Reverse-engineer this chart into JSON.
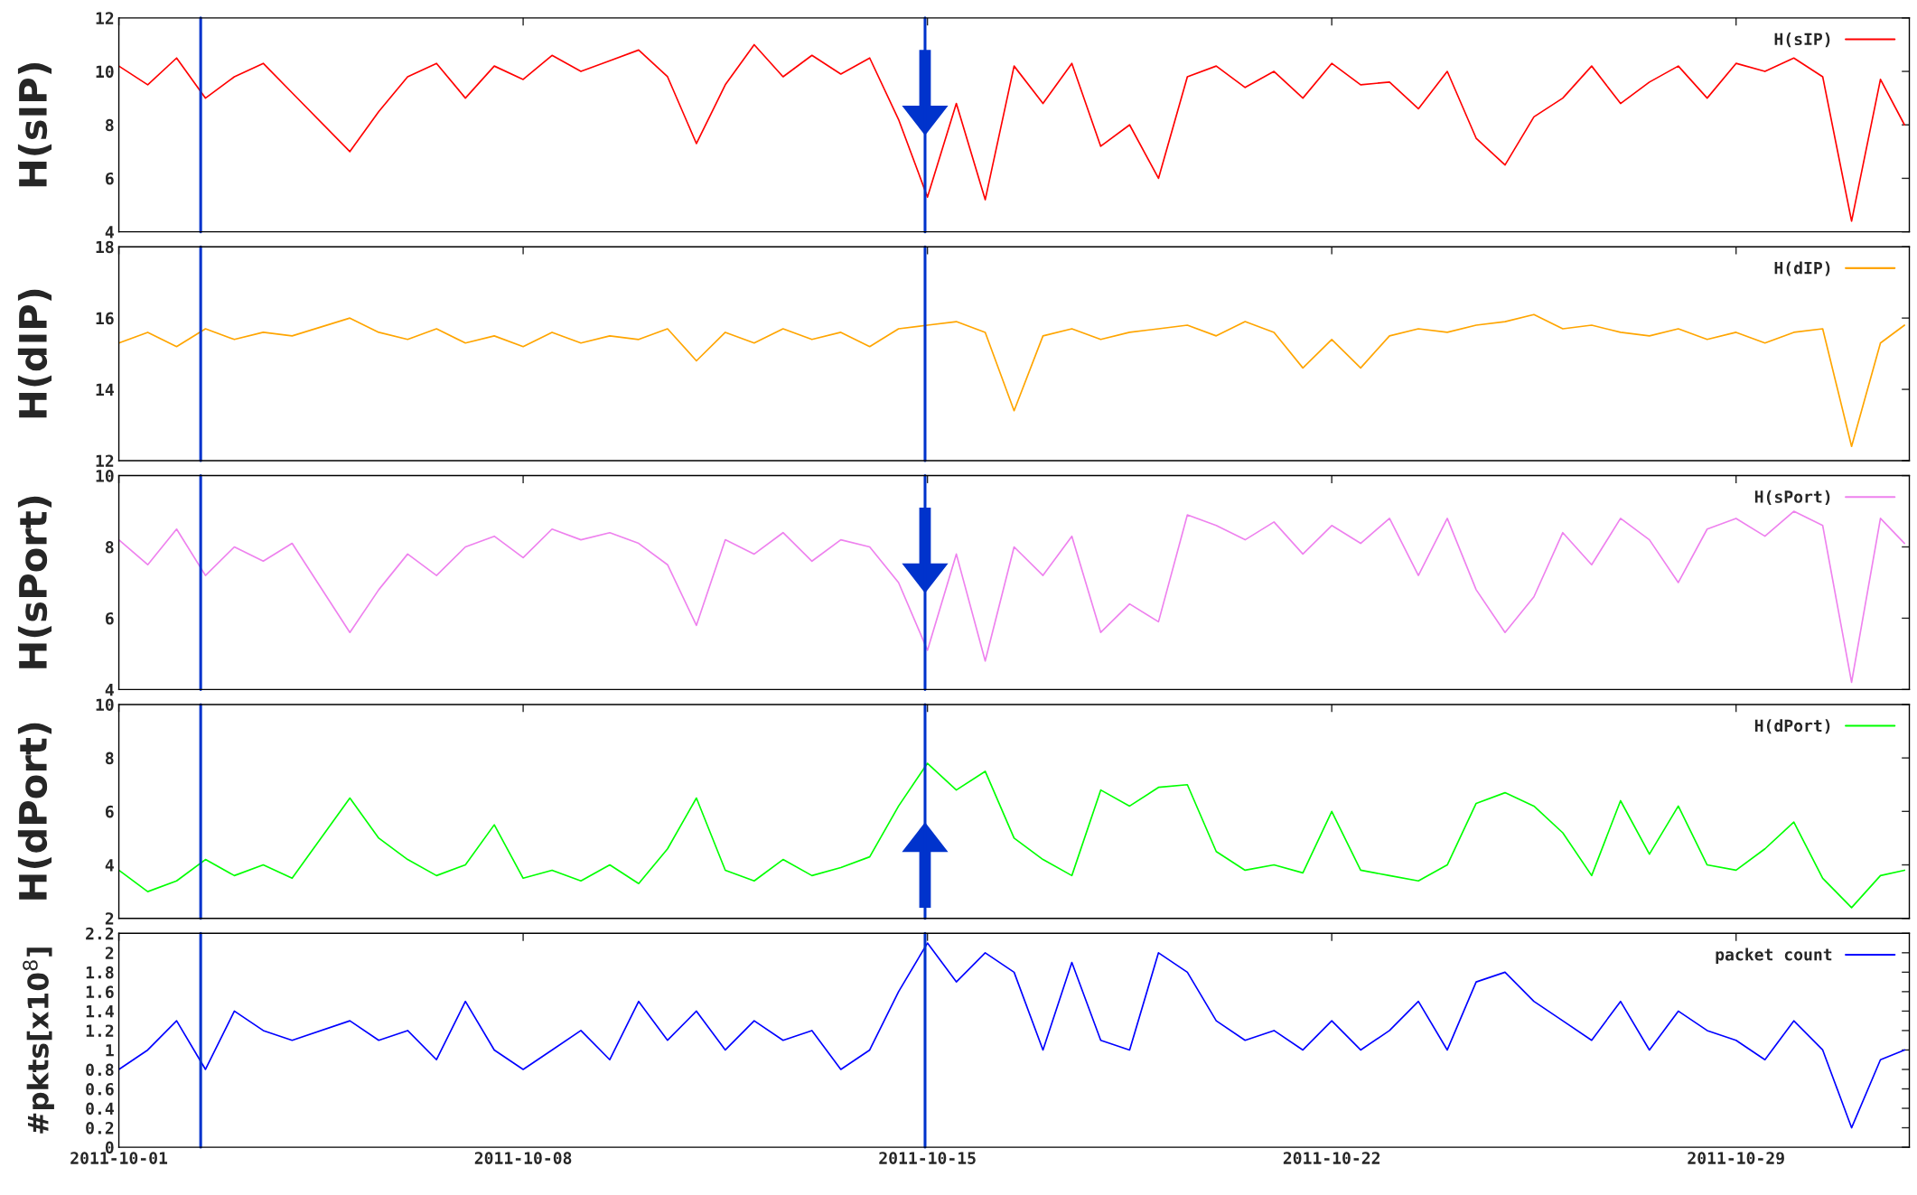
{
  "chart_data": [
    {
      "type": "line",
      "ylabel": "H(sIP)",
      "legend": "top right",
      "tick_labels": "y",
      "grid": false,
      "x": [
        "2011-10-01T00:00",
        "2011-10-01T12:00",
        "2011-10-02T00:00",
        "2011-10-02T12:00",
        "2011-10-03T00:00",
        "2011-10-03T12:00",
        "2011-10-04T00:00",
        "2011-10-04T12:00",
        "2011-10-05T00:00",
        "2011-10-05T12:00",
        "2011-10-06T00:00",
        "2011-10-06T12:00",
        "2011-10-07T00:00",
        "2011-10-07T12:00",
        "2011-10-08T00:00",
        "2011-10-08T12:00",
        "2011-10-09T00:00",
        "2011-10-09T12:00",
        "2011-10-10T00:00",
        "2011-10-10T12:00",
        "2011-10-11T00:00",
        "2011-10-11T12:00",
        "2011-10-12T00:00",
        "2011-10-12T12:00",
        "2011-10-13T00:00",
        "2011-10-13T12:00",
        "2011-10-14T00:00",
        "2011-10-14T12:00",
        "2011-10-15T00:00",
        "2011-10-15T12:00",
        "2011-10-16T00:00",
        "2011-10-16T12:00",
        "2011-10-17T00:00",
        "2011-10-17T12:00",
        "2011-10-18T00:00",
        "2011-10-18T12:00",
        "2011-10-19T00:00",
        "2011-10-19T12:00",
        "2011-10-20T00:00",
        "2011-10-20T12:00",
        "2011-10-21T00:00",
        "2011-10-21T12:00",
        "2011-10-22T00:00",
        "2011-10-22T12:00",
        "2011-10-23T00:00",
        "2011-10-23T12:00",
        "2011-10-24T00:00",
        "2011-10-24T12:00",
        "2011-10-25T00:00",
        "2011-10-25T12:00",
        "2011-10-26T00:00",
        "2011-10-26T12:00",
        "2011-10-27T00:00",
        "2011-10-27T12:00",
        "2011-10-28T00:00",
        "2011-10-28T12:00",
        "2011-10-29T00:00",
        "2011-10-29T12:00",
        "2011-10-30T00:00",
        "2011-10-30T12:00",
        "2011-10-31T00:00",
        "2011-10-31T12:00",
        "2011-10-31T22:00"
      ],
      "series": [
        {
          "name": "H(sIP)",
          "color": "#ff0000",
          "values": [
            10.2,
            9.5,
            10.5,
            9.0,
            9.8,
            10.3,
            9.2,
            null,
            7.0,
            8.5,
            9.8,
            10.3,
            9.0,
            10.2,
            9.7,
            10.6,
            10.0,
            10.4,
            10.8,
            9.8,
            7.3,
            9.5,
            11.0,
            9.8,
            10.6,
            9.9,
            10.5,
            8.2,
            5.3,
            8.8,
            5.2,
            10.2,
            8.8,
            10.3,
            7.2,
            8.0,
            6.0,
            9.8,
            10.2,
            9.4,
            10.0,
            9.0,
            10.3,
            9.5,
            9.6,
            8.6,
            10.0,
            7.5,
            6.5,
            8.3,
            9.0,
            10.2,
            8.8,
            9.6,
            10.2,
            9.0,
            10.3,
            10.0,
            10.5,
            9.8,
            4.4,
            9.7,
            8.0
          ]
        }
      ],
      "xlim": [
        "2011-10-01",
        "2011-11-01"
      ],
      "xticks": [
        "2011-10-01",
        "2011-10-08",
        "2011-10-15",
        "2011-10-22",
        "2011-10-29"
      ],
      "ylim": [
        4,
        12
      ],
      "yticks": [
        4,
        6,
        8,
        10,
        12
      ],
      "ref_lines": [
        {
          "axis": "x",
          "value": "2011-10-02T10:00",
          "color": "#0033cc"
        },
        {
          "axis": "x",
          "value": "2011-10-14T23:00",
          "color": "#0033cc"
        }
      ]
    },
    {
      "type": "line",
      "ylabel": "H(dIP)",
      "legend": "top right",
      "tick_labels": "y",
      "grid": false,
      "x": [
        "2011-10-01T00:00",
        "2011-10-01T12:00",
        "2011-10-02T00:00",
        "2011-10-02T12:00",
        "2011-10-03T00:00",
        "2011-10-03T12:00",
        "2011-10-04T00:00",
        "2011-10-04T12:00",
        "2011-10-05T00:00",
        "2011-10-05T12:00",
        "2011-10-06T00:00",
        "2011-10-06T12:00",
        "2011-10-07T00:00",
        "2011-10-07T12:00",
        "2011-10-08T00:00",
        "2011-10-08T12:00",
        "2011-10-09T00:00",
        "2011-10-09T12:00",
        "2011-10-10T00:00",
        "2011-10-10T12:00",
        "2011-10-11T00:00",
        "2011-10-11T12:00",
        "2011-10-12T00:00",
        "2011-10-12T12:00",
        "2011-10-13T00:00",
        "2011-10-13T12:00",
        "2011-10-14T00:00",
        "2011-10-14T12:00",
        "2011-10-15T00:00",
        "2011-10-15T12:00",
        "2011-10-16T00:00",
        "2011-10-16T12:00",
        "2011-10-17T00:00",
        "2011-10-17T12:00",
        "2011-10-18T00:00",
        "2011-10-18T12:00",
        "2011-10-19T00:00",
        "2011-10-19T12:00",
        "2011-10-20T00:00",
        "2011-10-20T12:00",
        "2011-10-21T00:00",
        "2011-10-21T12:00",
        "2011-10-22T00:00",
        "2011-10-22T12:00",
        "2011-10-23T00:00",
        "2011-10-23T12:00",
        "2011-10-24T00:00",
        "2011-10-24T12:00",
        "2011-10-25T00:00",
        "2011-10-25T12:00",
        "2011-10-26T00:00",
        "2011-10-26T12:00",
        "2011-10-27T00:00",
        "2011-10-27T12:00",
        "2011-10-28T00:00",
        "2011-10-28T12:00",
        "2011-10-29T00:00",
        "2011-10-29T12:00",
        "2011-10-30T00:00",
        "2011-10-30T12:00",
        "2011-10-31T00:00",
        "2011-10-31T12:00",
        "2011-10-31T22:00"
      ],
      "series": [
        {
          "name": "H(dIP)",
          "color": "#ffa500",
          "values": [
            15.3,
            15.6,
            15.2,
            15.7,
            15.4,
            15.6,
            15.5,
            null,
            16.0,
            15.6,
            15.4,
            15.7,
            15.3,
            15.5,
            15.2,
            15.6,
            15.3,
            15.5,
            15.4,
            15.7,
            14.8,
            15.6,
            15.3,
            15.7,
            15.4,
            15.6,
            15.2,
            15.7,
            15.8,
            15.9,
            15.6,
            13.4,
            15.5,
            15.7,
            15.4,
            15.6,
            15.7,
            15.8,
            15.5,
            15.9,
            15.6,
            14.6,
            15.4,
            14.6,
            15.5,
            15.7,
            15.6,
            15.8,
            15.9,
            16.1,
            15.7,
            15.8,
            15.6,
            15.5,
            15.7,
            15.4,
            15.6,
            15.3,
            15.6,
            15.7,
            12.4,
            15.3,
            15.8
          ]
        }
      ],
      "xlim": [
        "2011-10-01",
        "2011-11-01"
      ],
      "xticks": [
        "2011-10-01",
        "2011-10-08",
        "2011-10-15",
        "2011-10-22",
        "2011-10-29"
      ],
      "ylim": [
        12,
        18
      ],
      "yticks": [
        12,
        14,
        16,
        18
      ],
      "ref_lines": [
        {
          "axis": "x",
          "value": "2011-10-02T10:00",
          "color": "#0033cc"
        },
        {
          "axis": "x",
          "value": "2011-10-14T23:00",
          "color": "#0033cc"
        }
      ]
    },
    {
      "type": "line",
      "ylabel": "H(sPort)",
      "legend": "top right",
      "tick_labels": "y",
      "grid": false,
      "x": [
        "2011-10-01T00:00",
        "2011-10-01T12:00",
        "2011-10-02T00:00",
        "2011-10-02T12:00",
        "2011-10-03T00:00",
        "2011-10-03T12:00",
        "2011-10-04T00:00",
        "2011-10-04T12:00",
        "2011-10-05T00:00",
        "2011-10-05T12:00",
        "2011-10-06T00:00",
        "2011-10-06T12:00",
        "2011-10-07T00:00",
        "2011-10-07T12:00",
        "2011-10-08T00:00",
        "2011-10-08T12:00",
        "2011-10-09T00:00",
        "2011-10-09T12:00",
        "2011-10-10T00:00",
        "2011-10-10T12:00",
        "2011-10-11T00:00",
        "2011-10-11T12:00",
        "2011-10-12T00:00",
        "2011-10-12T12:00",
        "2011-10-13T00:00",
        "2011-10-13T12:00",
        "2011-10-14T00:00",
        "2011-10-14T12:00",
        "2011-10-15T00:00",
        "2011-10-15T12:00",
        "2011-10-16T00:00",
        "2011-10-16T12:00",
        "2011-10-17T00:00",
        "2011-10-17T12:00",
        "2011-10-18T00:00",
        "2011-10-18T12:00",
        "2011-10-19T00:00",
        "2011-10-19T12:00",
        "2011-10-20T00:00",
        "2011-10-20T12:00",
        "2011-10-21T00:00",
        "2011-10-21T12:00",
        "2011-10-22T00:00",
        "2011-10-22T12:00",
        "2011-10-23T00:00",
        "2011-10-23T12:00",
        "2011-10-24T00:00",
        "2011-10-24T12:00",
        "2011-10-25T00:00",
        "2011-10-25T12:00",
        "2011-10-26T00:00",
        "2011-10-26T12:00",
        "2011-10-27T00:00",
        "2011-10-27T12:00",
        "2011-10-28T00:00",
        "2011-10-28T12:00",
        "2011-10-29T00:00",
        "2011-10-29T12:00",
        "2011-10-30T00:00",
        "2011-10-30T12:00",
        "2011-10-31T00:00",
        "2011-10-31T12:00",
        "2011-10-31T22:00"
      ],
      "series": [
        {
          "name": "H(sPort)",
          "color": "#ee82ee",
          "values": [
            8.2,
            7.5,
            8.5,
            7.2,
            8.0,
            7.6,
            8.1,
            null,
            5.6,
            6.8,
            7.8,
            7.2,
            8.0,
            8.3,
            7.7,
            8.5,
            8.2,
            8.4,
            8.1,
            7.5,
            5.8,
            8.2,
            7.8,
            8.4,
            7.6,
            8.2,
            8.0,
            7.0,
            5.1,
            7.8,
            4.8,
            8.0,
            7.2,
            8.3,
            5.6,
            6.4,
            5.9,
            8.9,
            8.6,
            8.2,
            8.7,
            7.8,
            8.6,
            8.1,
            8.8,
            7.2,
            8.8,
            6.8,
            5.6,
            6.6,
            8.4,
            7.5,
            8.8,
            8.2,
            7.0,
            8.5,
            8.8,
            8.3,
            9.0,
            8.6,
            4.2,
            8.8,
            8.1
          ]
        }
      ],
      "xlim": [
        "2011-10-01",
        "2011-11-01"
      ],
      "xticks": [
        "2011-10-01",
        "2011-10-08",
        "2011-10-15",
        "2011-10-22",
        "2011-10-29"
      ],
      "ylim": [
        4,
        10
      ],
      "yticks": [
        4,
        6,
        8,
        10
      ],
      "ref_lines": [
        {
          "axis": "x",
          "value": "2011-10-02T10:00",
          "color": "#0033cc"
        },
        {
          "axis": "x",
          "value": "2011-10-14T23:00",
          "color": "#0033cc"
        }
      ]
    },
    {
      "type": "line",
      "ylabel": "H(dPort)",
      "legend": "top right",
      "tick_labels": "y",
      "grid": false,
      "x": [
        "2011-10-01T00:00",
        "2011-10-01T12:00",
        "2011-10-02T00:00",
        "2011-10-02T12:00",
        "2011-10-03T00:00",
        "2011-10-03T12:00",
        "2011-10-04T00:00",
        "2011-10-04T12:00",
        "2011-10-05T00:00",
        "2011-10-05T12:00",
        "2011-10-06T00:00",
        "2011-10-06T12:00",
        "2011-10-07T00:00",
        "2011-10-07T12:00",
        "2011-10-08T00:00",
        "2011-10-08T12:00",
        "2011-10-09T00:00",
        "2011-10-09T12:00",
        "2011-10-10T00:00",
        "2011-10-10T12:00",
        "2011-10-11T00:00",
        "2011-10-11T12:00",
        "2011-10-12T00:00",
        "2011-10-12T12:00",
        "2011-10-13T00:00",
        "2011-10-13T12:00",
        "2011-10-14T00:00",
        "2011-10-14T12:00",
        "2011-10-15T00:00",
        "2011-10-15T12:00",
        "2011-10-16T00:00",
        "2011-10-16T12:00",
        "2011-10-17T00:00",
        "2011-10-17T12:00",
        "2011-10-18T00:00",
        "2011-10-18T12:00",
        "2011-10-19T00:00",
        "2011-10-19T12:00",
        "2011-10-20T00:00",
        "2011-10-20T12:00",
        "2011-10-21T00:00",
        "2011-10-21T12:00",
        "2011-10-22T00:00",
        "2011-10-22T12:00",
        "2011-10-23T00:00",
        "2011-10-23T12:00",
        "2011-10-24T00:00",
        "2011-10-24T12:00",
        "2011-10-25T00:00",
        "2011-10-25T12:00",
        "2011-10-26T00:00",
        "2011-10-26T12:00",
        "2011-10-27T00:00",
        "2011-10-27T12:00",
        "2011-10-28T00:00",
        "2011-10-28T12:00",
        "2011-10-29T00:00",
        "2011-10-29T12:00",
        "2011-10-30T00:00",
        "2011-10-30T12:00",
        "2011-10-31T00:00",
        "2011-10-31T12:00",
        "2011-10-31T22:00"
      ],
      "series": [
        {
          "name": "H(dPort)",
          "color": "#00ff00",
          "values": [
            3.8,
            3.0,
            3.4,
            4.2,
            3.6,
            4.0,
            3.5,
            null,
            6.5,
            5.0,
            4.2,
            3.6,
            4.0,
            5.5,
            3.5,
            3.8,
            3.4,
            4.0,
            3.3,
            4.6,
            6.5,
            3.8,
            3.4,
            4.2,
            3.6,
            3.9,
            4.3,
            6.2,
            7.8,
            6.8,
            7.5,
            5.0,
            4.2,
            3.6,
            6.8,
            6.2,
            6.9,
            7.0,
            4.5,
            3.8,
            4.0,
            3.7,
            6.0,
            3.8,
            3.6,
            3.4,
            4.0,
            6.3,
            6.7,
            6.2,
            5.2,
            3.6,
            6.4,
            4.4,
            6.2,
            4.0,
            3.8,
            4.6,
            5.6,
            3.5,
            2.4,
            3.6,
            3.8
          ]
        }
      ],
      "xlim": [
        "2011-10-01",
        "2011-11-01"
      ],
      "xticks": [
        "2011-10-01",
        "2011-10-08",
        "2011-10-15",
        "2011-10-22",
        "2011-10-29"
      ],
      "ylim": [
        2,
        10
      ],
      "yticks": [
        2,
        4,
        6,
        8,
        10
      ],
      "ref_lines": [
        {
          "axis": "x",
          "value": "2011-10-02T10:00",
          "color": "#0033cc"
        },
        {
          "axis": "x",
          "value": "2011-10-14T23:00",
          "color": "#0033cc"
        }
      ]
    },
    {
      "type": "line",
      "ylabel": "#pkts[x10$^{8}$]",
      "legend": "top right",
      "grid": false,
      "x": [
        "2011-10-01T00:00",
        "2011-10-01T12:00",
        "2011-10-02T00:00",
        "2011-10-02T12:00",
        "2011-10-03T00:00",
        "2011-10-03T12:00",
        "2011-10-04T00:00",
        "2011-10-04T12:00",
        "2011-10-05T00:00",
        "2011-10-05T12:00",
        "2011-10-06T00:00",
        "2011-10-06T12:00",
        "2011-10-07T00:00",
        "2011-10-07T12:00",
        "2011-10-08T00:00",
        "2011-10-08T12:00",
        "2011-10-09T00:00",
        "2011-10-09T12:00",
        "2011-10-10T00:00",
        "2011-10-10T12:00",
        "2011-10-11T00:00",
        "2011-10-11T12:00",
        "2011-10-12T00:00",
        "2011-10-12T12:00",
        "2011-10-13T00:00",
        "2011-10-13T12:00",
        "2011-10-14T00:00",
        "2011-10-14T12:00",
        "2011-10-15T00:00",
        "2011-10-15T12:00",
        "2011-10-16T00:00",
        "2011-10-16T12:00",
        "2011-10-17T00:00",
        "2011-10-17T12:00",
        "2011-10-18T00:00",
        "2011-10-18T12:00",
        "2011-10-19T00:00",
        "2011-10-19T12:00",
        "2011-10-20T00:00",
        "2011-10-20T12:00",
        "2011-10-21T00:00",
        "2011-10-21T12:00",
        "2011-10-22T00:00",
        "2011-10-22T12:00",
        "2011-10-23T00:00",
        "2011-10-23T12:00",
        "2011-10-24T00:00",
        "2011-10-24T12:00",
        "2011-10-25T00:00",
        "2011-10-25T12:00",
        "2011-10-26T00:00",
        "2011-10-26T12:00",
        "2011-10-27T00:00",
        "2011-10-27T12:00",
        "2011-10-28T00:00",
        "2011-10-28T12:00",
        "2011-10-29T00:00",
        "2011-10-29T12:00",
        "2011-10-30T00:00",
        "2011-10-30T12:00",
        "2011-10-31T00:00",
        "2011-10-31T12:00",
        "2011-10-31T22:00"
      ],
      "series": [
        {
          "name": "packet count",
          "color": "#0000ff",
          "values": [
            0.8,
            1.0,
            1.3,
            0.8,
            1.4,
            1.2,
            1.1,
            null,
            1.3,
            1.1,
            1.2,
            0.9,
            1.5,
            1.0,
            0.8,
            1.0,
            1.2,
            0.9,
            1.5,
            1.1,
            1.4,
            1.0,
            1.3,
            1.1,
            1.2,
            0.8,
            1.0,
            1.6,
            2.1,
            1.7,
            2.0,
            1.8,
            1.0,
            1.9,
            1.1,
            1.0,
            2.0,
            1.8,
            1.3,
            1.1,
            1.2,
            1.0,
            1.3,
            1.0,
            1.2,
            1.5,
            1.0,
            1.7,
            1.8,
            1.5,
            1.3,
            1.1,
            1.5,
            1.0,
            1.4,
            1.2,
            1.1,
            0.9,
            1.3,
            1.0,
            0.2,
            0.9,
            1.0
          ]
        }
      ],
      "xlim": [
        "2011-10-01",
        "2011-11-01"
      ],
      "xticks": [
        "2011-10-01",
        "2011-10-08",
        "2011-10-15",
        "2011-10-22",
        "2011-10-29"
      ],
      "ylim": [
        0,
        2.2
      ],
      "yticks": [
        0,
        0.2,
        0.4,
        0.6,
        0.8,
        1,
        1.2,
        1.4,
        1.6,
        1.8,
        2,
        2.2
      ],
      "ref_lines": [
        {
          "axis": "x",
          "value": "2011-10-02T10:00",
          "color": "#0033cc"
        },
        {
          "axis": "x",
          "value": "2011-10-14T23:00",
          "color": "#0033cc"
        }
      ]
    }
  ]
}
